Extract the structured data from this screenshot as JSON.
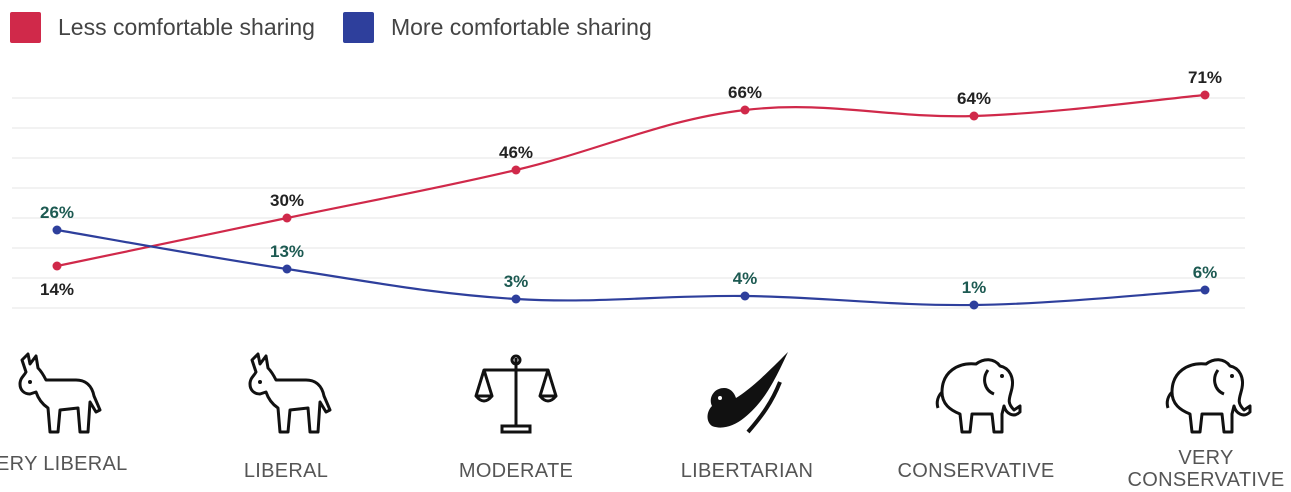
{
  "legend": {
    "series_a": {
      "label": "Less comfortable sharing",
      "color": "#d0294a"
    },
    "series_b": {
      "label": "More comfortable sharing",
      "color": "#2e3f9c"
    }
  },
  "chart_data": {
    "type": "line",
    "categories": [
      "VERY LIBERAL",
      "LIBERAL",
      "MODERATE",
      "LIBERTARIAN",
      "CONSERVATIVE",
      "VERY CONSERVATIVE"
    ],
    "series": [
      {
        "name": "Less comfortable sharing",
        "values": [
          14,
          30,
          46,
          66,
          64,
          71
        ],
        "labels": [
          "14%",
          "30%",
          "46%",
          "66%",
          "64%",
          "71%"
        ],
        "color": "#d0294a"
      },
      {
        "name": "More comfortable sharing",
        "values": [
          26,
          13,
          3,
          4,
          1,
          6
        ],
        "labels": [
          "26%",
          "13%",
          "3%",
          "4%",
          "1%",
          "6%"
        ],
        "color": "#2e3f9c"
      }
    ],
    "ylim": [
      0,
      70
    ],
    "grid": true,
    "legend_position": "top-left",
    "icons": [
      "donkey-icon",
      "donkey-icon",
      "scales-icon",
      "eagle-icon",
      "elephant-icon",
      "elephant-icon"
    ]
  }
}
